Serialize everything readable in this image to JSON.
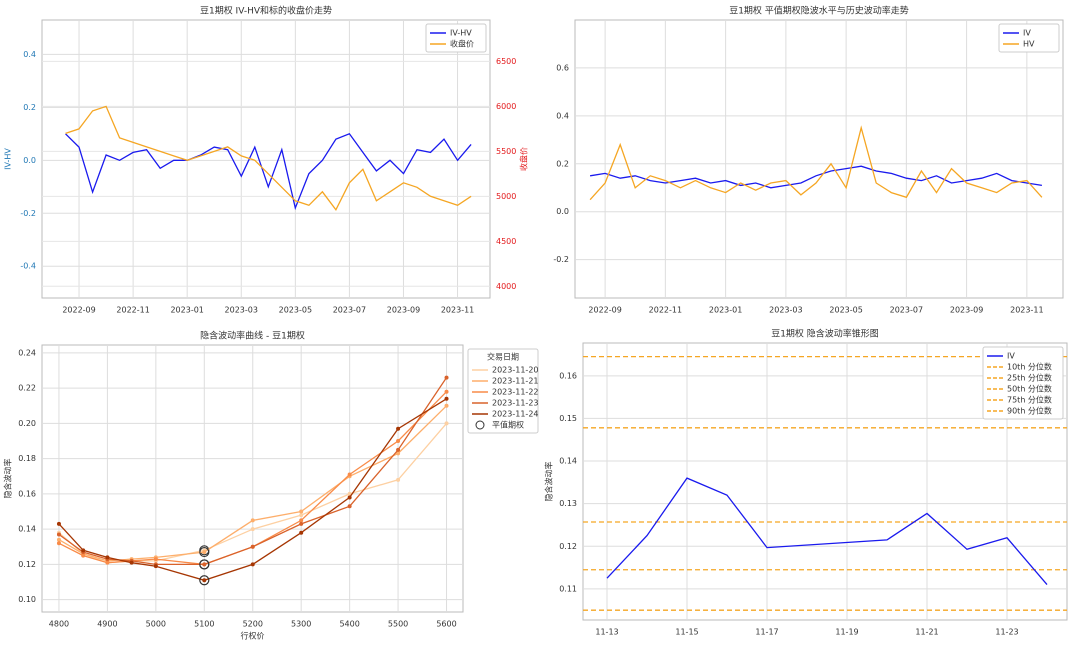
{
  "chart_data": [
    {
      "type": "line",
      "title": "豆1期权 IV-HV和标的收盘价走势",
      "ylabel": "IV-HV",
      "y2label": "收盘价",
      "ycolor": "#1f77b4",
      "y2color": "#e31a1c",
      "legend": "upper right",
      "grid": true,
      "x": [
        -0.5,
        0,
        0.5,
        1,
        1.5,
        2,
        2.5,
        3,
        3.5,
        4,
        4.5,
        5,
        5.5,
        6,
        6.5,
        7,
        7.5,
        8,
        8.5,
        9,
        9.5,
        10,
        10.5,
        11,
        11.5,
        12,
        12.5,
        13,
        13.5,
        14,
        14.5
      ],
      "xlim": [
        -1.37,
        15.2
      ],
      "xticks": [
        {
          "value": 0,
          "label": "2022-09"
        },
        {
          "value": 2,
          "label": "2022-11"
        },
        {
          "value": 4,
          "label": "2023-01"
        },
        {
          "value": 6,
          "label": "2023-03"
        },
        {
          "value": 8,
          "label": "2023-05"
        },
        {
          "value": 10,
          "label": "2023-07"
        },
        {
          "value": 12,
          "label": "2023-09"
        },
        {
          "value": 14,
          "label": "2023-11"
        }
      ],
      "ylim": [
        -0.52,
        0.53
      ],
      "yticks": [
        -0.4,
        -0.2,
        {
          "value": 0,
          "label": "0.0"
        },
        0.2,
        0.4
      ],
      "y2lim": [
        3870,
        6960
      ],
      "y2ticks": [
        4000,
        4500,
        5000,
        5500,
        6000,
        6500
      ],
      "series": [
        {
          "name": "IV-HV",
          "color": "#1a1aee",
          "values": [
            0.1,
            0.05,
            -0.12,
            0.02,
            0.0,
            0.03,
            0.04,
            -0.03,
            0.0,
            0.0,
            0.02,
            0.05,
            0.04,
            -0.06,
            0.05,
            -0.1,
            0.04,
            -0.18,
            -0.05,
            0.0,
            0.08,
            0.1,
            0.03,
            -0.04,
            0.0,
            -0.05,
            0.04,
            0.03,
            0.08,
            0.0,
            0.06
          ]
        },
        {
          "name": "收盘价",
          "color": "#f5a623",
          "axis": "y2",
          "values": [
            5700,
            5750,
            5950,
            6000,
            5650,
            5600,
            5550,
            5500,
            5450,
            5400,
            5450,
            5500,
            5550,
            5450,
            5400,
            5250,
            5100,
            4950,
            4900,
            5050,
            4850,
            5150,
            5300,
            4950,
            5050,
            5150,
            5100,
            5000,
            4950,
            4900,
            5000
          ]
        }
      ]
    },
    {
      "type": "line",
      "title": "豆1期权 平值期权隐波水平与历史波动率走势",
      "legend": "upper right",
      "grid": true,
      "x": [
        -0.5,
        0,
        0.5,
        1,
        1.5,
        2,
        2.5,
        3,
        3.5,
        4,
        4.5,
        5,
        5.5,
        6,
        6.5,
        7,
        7.5,
        8,
        8.5,
        9,
        9.5,
        10,
        10.5,
        11,
        11.5,
        12,
        12.5,
        13,
        13.5,
        14,
        14.5
      ],
      "xlim": [
        -1.0,
        15.2
      ],
      "xticks": [
        {
          "value": 0,
          "label": "2022-09"
        },
        {
          "value": 2,
          "label": "2022-11"
        },
        {
          "value": 4,
          "label": "2023-01"
        },
        {
          "value": 6,
          "label": "2023-03"
        },
        {
          "value": 8,
          "label": "2023-05"
        },
        {
          "value": 10,
          "label": "2023-07"
        },
        {
          "value": 12,
          "label": "2023-09"
        },
        {
          "value": 14,
          "label": "2023-11"
        }
      ],
      "ylim": [
        -0.36,
        0.8
      ],
      "yticks": [
        -0.2,
        {
          "value": 0,
          "label": "0.0"
        },
        0.2,
        0.4,
        0.6
      ],
      "series": [
        {
          "name": "IV",
          "color": "#1a1aee",
          "values": [
            0.15,
            0.16,
            0.14,
            0.15,
            0.13,
            0.12,
            0.13,
            0.14,
            0.12,
            0.13,
            0.11,
            0.12,
            0.1,
            0.11,
            0.12,
            0.15,
            0.17,
            0.18,
            0.19,
            0.17,
            0.16,
            0.14,
            0.13,
            0.15,
            0.12,
            0.13,
            0.14,
            0.16,
            0.13,
            0.12,
            0.11
          ]
        },
        {
          "name": "HV",
          "color": "#f5a623",
          "values": [
            0.05,
            0.12,
            0.28,
            0.1,
            0.15,
            0.13,
            0.1,
            0.13,
            0.1,
            0.08,
            0.12,
            0.09,
            0.12,
            0.13,
            0.07,
            0.12,
            0.2,
            0.1,
            0.35,
            0.12,
            0.08,
            0.06,
            0.17,
            0.08,
            0.18,
            0.12,
            0.1,
            0.08,
            0.12,
            0.13,
            0.06
          ]
        }
      ]
    },
    {
      "type": "line",
      "title": "隐含波动率曲线 - 豆1期权",
      "xlabel": "行权价",
      "ylabel": "隐含波动率",
      "legend": "outside upper right",
      "legend_title": "交易日期",
      "markers": true,
      "grid": true,
      "x": [
        4800,
        4850,
        4900,
        4950,
        5000,
        5100,
        5200,
        5300,
        5400,
        5500,
        5600
      ],
      "xlim": [
        4765,
        5634
      ],
      "xticks": [
        4800,
        4900,
        5000,
        5100,
        5200,
        5300,
        5400,
        5500,
        5600
      ],
      "ylim": [
        0.093,
        0.2445
      ],
      "yticks": [
        {
          "value": 0.1,
          "label": "0.10"
        },
        0.12,
        0.14,
        0.16,
        0.18,
        {
          "value": 0.2,
          "label": "0.20"
        },
        0.22,
        0.24
      ],
      "series": [
        {
          "name": "2023-11-20",
          "color": "#fdd0a2",
          "values": [
            0.138,
            0.126,
            0.121,
            0.122,
            0.122,
            0.128,
            0.14,
            0.148,
            0.16,
            0.168,
            0.2
          ]
        },
        {
          "name": "2023-11-21",
          "color": "#fdae6b",
          "values": [
            0.134,
            0.126,
            0.122,
            0.123,
            0.124,
            0.127,
            0.145,
            0.15,
            0.17,
            0.183,
            0.21
          ]
        },
        {
          "name": "2023-11-22",
          "color": "#f98b48",
          "values": [
            0.132,
            0.125,
            0.121,
            0.122,
            0.123,
            0.12,
            0.13,
            0.145,
            0.171,
            0.19,
            0.218
          ]
        },
        {
          "name": "2023-11-23",
          "color": "#d9622b",
          "values": [
            0.137,
            0.127,
            0.123,
            0.122,
            0.12,
            0.12,
            0.13,
            0.143,
            0.153,
            0.185,
            0.226
          ]
        },
        {
          "name": "2023-11-24",
          "color": "#a63603",
          "values": [
            0.143,
            0.128,
            0.124,
            0.121,
            0.119,
            0.111,
            0.12,
            0.138,
            0.158,
            0.197,
            0.214
          ]
        }
      ],
      "atm": {
        "name": "平值期权",
        "x": 5100
      }
    },
    {
      "type": "line",
      "title": "豆1期权 隐含波动率锥形图",
      "ylabel": "隐含波动率",
      "legend": "upper right",
      "grid": true,
      "x": [
        13,
        14,
        15,
        16,
        17,
        20,
        21,
        22,
        23,
        24
      ],
      "xlim": [
        12.4,
        24.5
      ],
      "xticks": [
        {
          "value": 13,
          "label": "11-13"
        },
        {
          "value": 15,
          "label": "11-15"
        },
        {
          "value": 17,
          "label": "11-17"
        },
        {
          "value": 19,
          "label": "11-19"
        },
        {
          "value": 21,
          "label": "11-21"
        },
        {
          "value": 23,
          "label": "11-23"
        }
      ],
      "ylim": [
        0.1027,
        0.1677
      ],
      "yticks": [
        0.11,
        0.12,
        0.13,
        0.14,
        0.15,
        0.16
      ],
      "series": [
        {
          "name": "IV",
          "color": "#1a1aee",
          "values": [
            0.1125,
            0.1225,
            0.136,
            0.132,
            0.1197,
            0.1215,
            0.1277,
            0.1193,
            0.122,
            0.111
          ]
        }
      ],
      "hlines": [
        {
          "name": "10th 分位数",
          "value": 0.105,
          "color": "#f5a623"
        },
        {
          "name": "25th 分位数",
          "value": 0.1145,
          "color": "#f5a623"
        },
        {
          "name": "50th 分位数",
          "value": 0.1257,
          "color": "#f5a623"
        },
        {
          "name": "75th 分位数",
          "value": 0.1478,
          "color": "#f5a623"
        },
        {
          "name": "90th 分位数",
          "value": 0.1645,
          "color": "#f5a623"
        }
      ]
    }
  ]
}
